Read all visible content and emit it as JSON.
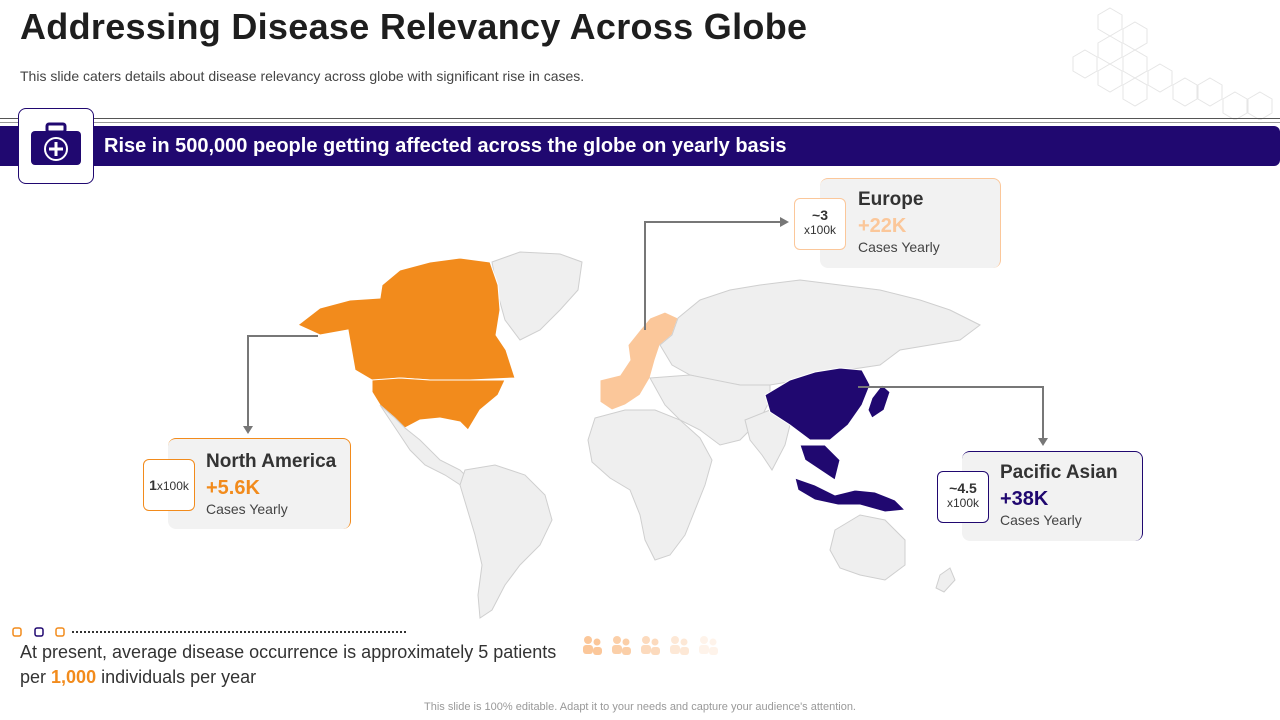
{
  "header": {
    "title": "Addressing Disease Relevancy Across Globe",
    "subtitle": "This slide caters details about disease relevancy  across globe with significant rise in cases."
  },
  "banner": {
    "text": "Rise in 500,000 people getting affected across the globe on yearly basis",
    "icon": "medical-kit-icon",
    "color": "#200870"
  },
  "regions": {
    "north_america": {
      "name": "North America",
      "value": "+5.6K",
      "label": "Cases Yearly",
      "scale_num": "1",
      "scale_unit": "x100k",
      "color": "#f28b1c"
    },
    "europe": {
      "name": "Europe",
      "value": "+22K",
      "label": "Cases Yearly",
      "scale_num": "~3",
      "scale_unit": "x100k",
      "color": "#fbc79a"
    },
    "pacific_asian": {
      "name": "Pacific Asian",
      "value": "+38K",
      "label": "Cases Yearly",
      "scale_num": "~4.5",
      "scale_unit": "x100k",
      "color": "#200870"
    }
  },
  "stat": {
    "part1": "At present, average disease occurrence is approximately 5 patients per ",
    "highlight": "1,000",
    "part2": " individuals per year",
    "people_icon_count": 5
  },
  "footer": {
    "note": "This slide is 100% editable. Adapt it to your needs and capture your audience's attention."
  }
}
